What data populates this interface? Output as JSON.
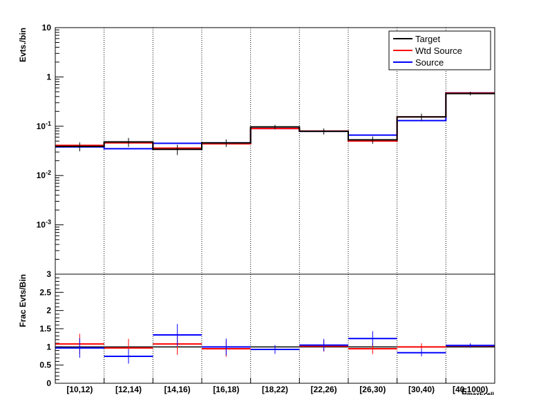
{
  "chart_data": [
    {
      "type": "histogram",
      "yscale": "log",
      "ylabel": "Evts./bin",
      "ylim": [
        0.0001,
        10
      ],
      "y_ticks": [
        {
          "v": 10,
          "base": "10",
          "exp": ""
        },
        {
          "v": 1,
          "base": "1",
          "exp": ""
        },
        {
          "v": 0.1,
          "base": "10",
          "exp": "-1"
        },
        {
          "v": 0.01,
          "base": "10",
          "exp": "-2"
        },
        {
          "v": 0.001,
          "base": "10",
          "exp": "-3"
        }
      ],
      "categories": [
        "[10,12)",
        "[12,14)",
        "[14,16)",
        "[16,18)",
        "[18,22)",
        "[22,26)",
        "[26,30)",
        "[30,40)",
        "[40,1000)"
      ],
      "grid": "vertical dotted",
      "legend_position": "top-right",
      "series": [
        {
          "name": "Target",
          "color": "#000000",
          "values": [
            0.039,
            0.048,
            0.034,
            0.046,
            0.097,
            0.079,
            0.053,
            0.155,
            0.46
          ],
          "err_lo": [
            0.031,
            0.038,
            0.026,
            0.038,
            0.087,
            0.068,
            0.044,
            0.13,
            0.42
          ],
          "err_hi": [
            0.047,
            0.058,
            0.042,
            0.054,
            0.107,
            0.09,
            0.062,
            0.18,
            0.5
          ]
        },
        {
          "name": "Wtd Source",
          "color": "#ff0000",
          "values": [
            0.041,
            0.046,
            0.036,
            0.044,
            0.09,
            0.08,
            0.05,
            0.155,
            0.47
          ]
        },
        {
          "name": "Source",
          "color": "#0000ff",
          "values": [
            0.038,
            0.035,
            0.045,
            0.046,
            0.09,
            0.079,
            0.066,
            0.13,
            0.475
          ]
        }
      ]
    },
    {
      "type": "histogram",
      "ylabel": "Frac Evts/Bin",
      "xlabel": "E_{maxEcell}",
      "ylim": [
        0,
        3
      ],
      "y_ticks": [
        "0",
        "0.5",
        "1",
        "1.5",
        "2",
        "2.5",
        "3"
      ],
      "categories": [
        "[10,12)",
        "[12,14)",
        "[14,16)",
        "[16,18)",
        "[18,22)",
        "[22,26)",
        "[26,30)",
        "[30,40)",
        "[40,1000)"
      ],
      "series": [
        {
          "name": "Wtd Source",
          "color": "#ff0000",
          "values": [
            1.08,
            0.97,
            1.08,
            0.95,
            0.93,
            1.02,
            0.95,
            1.0,
            1.03
          ],
          "err": [
            0.28,
            0.25,
            0.3,
            0.22,
            0.12,
            0.15,
            0.15,
            0.1,
            0.05
          ]
        },
        {
          "name": "Source",
          "color": "#0000ff",
          "values": [
            0.97,
            0.74,
            1.33,
            1.0,
            0.93,
            1.05,
            1.23,
            0.84,
            1.04
          ],
          "err": [
            0.27,
            0.2,
            0.3,
            0.23,
            0.12,
            0.17,
            0.2,
            0.1,
            0.06
          ]
        },
        {
          "name": "Target",
          "color": "#000000",
          "values": [
            1.0,
            1.0,
            1.0,
            1.0,
            1.0,
            1.0,
            1.0,
            1.0,
            1.0
          ]
        }
      ]
    }
  ],
  "legend": {
    "items": [
      {
        "label": "Target",
        "color": "#000000"
      },
      {
        "label": "Wtd Source",
        "color": "#ff0000"
      },
      {
        "label": "Source",
        "color": "#0000ff"
      }
    ]
  },
  "axis": {
    "top_ylabel": "Evts./bin",
    "bottom_ylabel": "Frac Evts/Bin",
    "xlabel_main": "E",
    "xlabel_sub": "maxEcell"
  }
}
